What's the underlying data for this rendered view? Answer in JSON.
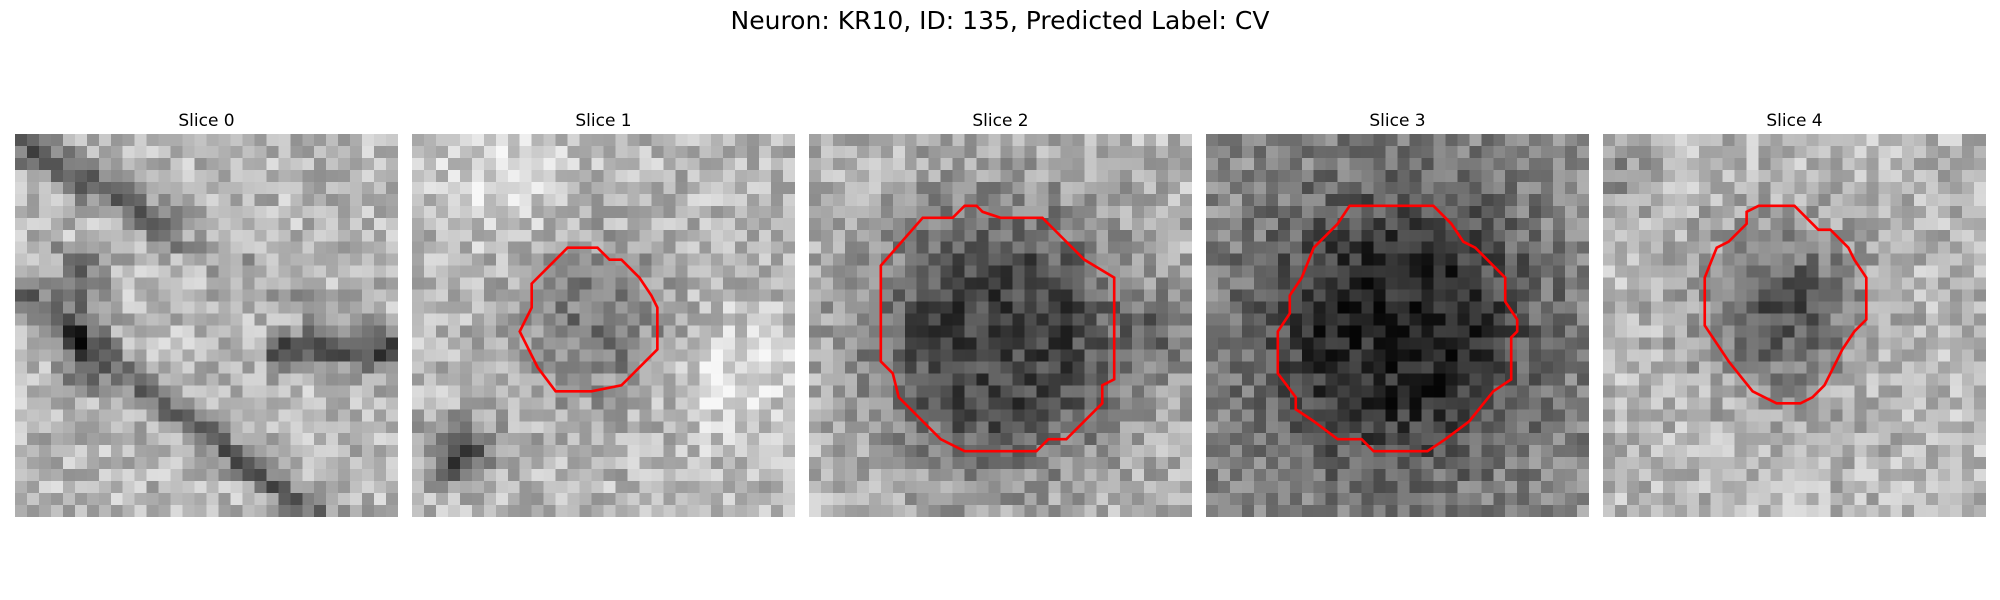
{
  "figure": {
    "title": "Neuron: KR10, ID: 135, Predicted Label: CV"
  },
  "slices": [
    {
      "title": "Slice 0",
      "has_roi": false,
      "roi_color": "#ff0000",
      "pattern": "strands",
      "seed": 11
    },
    {
      "title": "Slice 1",
      "has_roi": true,
      "roi_color": "#ff0000",
      "pattern": "small",
      "seed": 23
    },
    {
      "title": "Slice 2",
      "has_roi": true,
      "roi_color": "#ff0000",
      "pattern": "large",
      "seed": 37
    },
    {
      "title": "Slice 3",
      "has_roi": true,
      "roi_color": "#ff0000",
      "pattern": "large_top",
      "seed": 53
    },
    {
      "title": "Slice 4",
      "has_roi": true,
      "roi_color": "#ff0000",
      "pattern": "medium",
      "seed": 71
    }
  ]
}
